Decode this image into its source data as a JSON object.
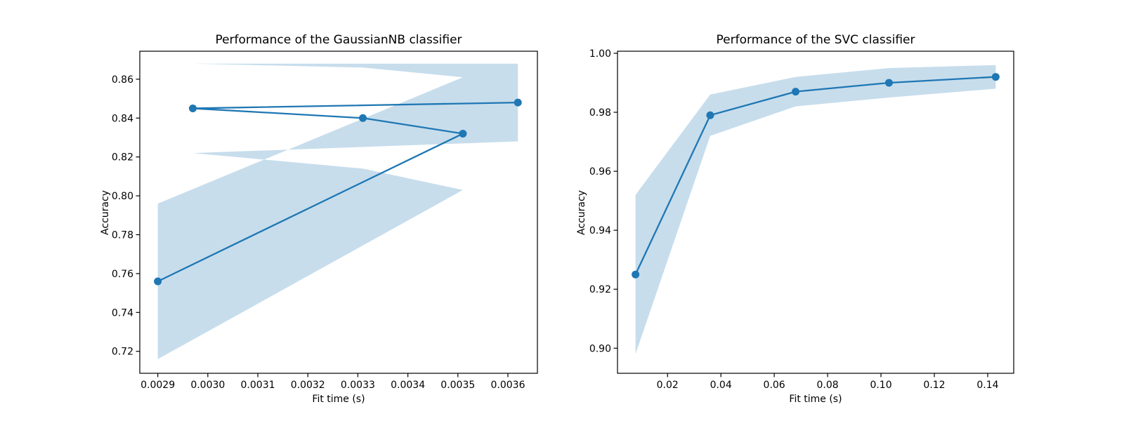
{
  "figure": {
    "background": "#ffffff"
  },
  "style": {
    "line_color": "#1f77b4",
    "band_color": "rgba(31,119,180,0.25)",
    "axis_color": "#000000",
    "text_color": "#000000"
  },
  "chart_data": [
    {
      "type": "line",
      "title": "Performance of the GaussianNB classifier",
      "xlabel": "Fit time (s)",
      "ylabel": "Accuracy",
      "legend": "none",
      "grid": false,
      "x": [
        0.0029,
        0.00351,
        0.00331,
        0.00297,
        0.00362
      ],
      "y": [
        0.756,
        0.832,
        0.84,
        0.845,
        0.848
      ],
      "y_upper": [
        0.796,
        0.861,
        0.866,
        0.868,
        0.868
      ],
      "y_lower": [
        0.716,
        0.803,
        0.814,
        0.822,
        0.828
      ],
      "xlim": [
        0.002864,
        0.003659
      ],
      "ylim": [
        0.7087,
        0.8744
      ],
      "xticks": [
        0.0029,
        0.003,
        0.0031,
        0.0032,
        0.0033,
        0.0034,
        0.0035,
        0.0036
      ],
      "xtick_labels": [
        "0.0029",
        "0.0030",
        "0.0031",
        "0.0032",
        "0.0033",
        "0.0034",
        "0.0035",
        "0.0036"
      ],
      "yticks": [
        0.72,
        0.74,
        0.76,
        0.78,
        0.8,
        0.82,
        0.84,
        0.86
      ],
      "ytick_labels": [
        "0.72",
        "0.74",
        "0.76",
        "0.78",
        "0.80",
        "0.82",
        "0.84",
        "0.86"
      ]
    },
    {
      "type": "line",
      "title": "Performance of the SVC classifier",
      "xlabel": "Fit time (s)",
      "ylabel": "Accuracy",
      "legend": "none",
      "grid": false,
      "x": [
        0.008,
        0.036,
        0.068,
        0.103,
        0.143
      ],
      "y": [
        0.925,
        0.979,
        0.987,
        0.99,
        0.992
      ],
      "y_upper": [
        0.952,
        0.986,
        0.992,
        0.995,
        0.996
      ],
      "y_lower": [
        0.898,
        0.972,
        0.982,
        0.985,
        0.988
      ],
      "xlim": [
        0.00125,
        0.14975
      ],
      "ylim": [
        0.8915,
        1.0007
      ],
      "xticks": [
        0.02,
        0.04,
        0.06,
        0.08,
        0.1,
        0.12,
        0.14
      ],
      "xtick_labels": [
        "0.02",
        "0.04",
        "0.06",
        "0.08",
        "0.10",
        "0.12",
        "0.14"
      ],
      "yticks": [
        0.9,
        0.92,
        0.94,
        0.96,
        0.98,
        1.0
      ],
      "ytick_labels": [
        "0.90",
        "0.92",
        "0.94",
        "0.96",
        "0.98",
        "1.00"
      ]
    }
  ]
}
